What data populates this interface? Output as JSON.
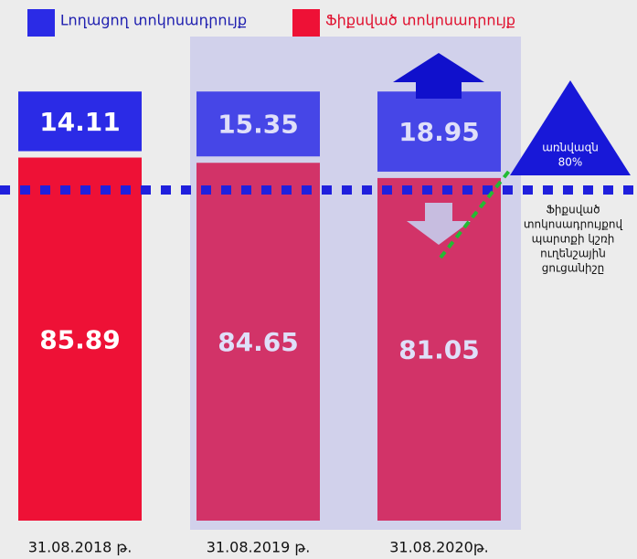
{
  "chart_data": {
    "type": "stacked_bar",
    "categories": [
      "31.08.2018 թ.",
      "31.08.2019 թ.",
      "31.08.2020թ."
    ],
    "series": [
      {
        "name": "Ֆիքսված տոկոսադրույք",
        "color": "#ee1136",
        "values": [
          85.89,
          84.65,
          81.05
        ]
      },
      {
        "name": "Լողացող տոկոսադրույք",
        "color": "#2b2be6",
        "values": [
          14.11,
          15.35,
          18.95
        ]
      }
    ],
    "ylim": [
      0,
      100
    ],
    "annotations": {
      "threshold": [
        "առնվազն",
        "80%"
      ],
      "note": [
        "Ֆիքսված",
        "տոկոսադրույքով",
        "պարտքի կշռի",
        "ուղենշային",
        "ցուցանիշը"
      ]
    }
  }
}
